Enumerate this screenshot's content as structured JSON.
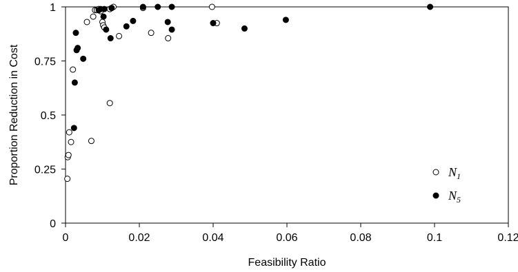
{
  "chart_data": {
    "type": "scatter",
    "title": "",
    "xlabel": "Feasibility Ratio",
    "ylabel": "Proportion Reduction in Cost",
    "xlim": [
      0,
      0.12
    ],
    "ylim": [
      0,
      1
    ],
    "x_ticks": [
      "0",
      "0.02",
      "0.04",
      "0.06",
      "0.08",
      "0.1",
      "0.12"
    ],
    "y_ticks": [
      "0",
      "0.25",
      "0.5",
      "0.75",
      "1"
    ],
    "grid": false,
    "legend_position": "bottom-right",
    "series": [
      {
        "name_main": "N",
        "name_sub": "1",
        "marker": "open-circle",
        "points": [
          [
            0.0005,
            0.205
          ],
          [
            0.0006,
            0.305
          ],
          [
            0.0008,
            0.315
          ],
          [
            0.001,
            0.42
          ],
          [
            0.0015,
            0.375
          ],
          [
            0.002,
            0.71
          ],
          [
            0.0058,
            0.93
          ],
          [
            0.007,
            0.38
          ],
          [
            0.0075,
            0.955
          ],
          [
            0.008,
            0.985
          ],
          [
            0.0085,
            0.985
          ],
          [
            0.009,
            0.99
          ],
          [
            0.0095,
            0.98
          ],
          [
            0.01,
            0.93
          ],
          [
            0.0102,
            0.915
          ],
          [
            0.0105,
            0.905
          ],
          [
            0.012,
            0.555
          ],
          [
            0.012,
            0.99
          ],
          [
            0.0125,
            0.995
          ],
          [
            0.013,
            1.0
          ],
          [
            0.0145,
            0.865
          ],
          [
            0.021,
            0.995
          ],
          [
            0.0232,
            0.88
          ],
          [
            0.0278,
            0.855
          ],
          [
            0.0397,
            1.0
          ],
          [
            0.041,
            0.925
          ]
        ]
      },
      {
        "name_main": "N",
        "name_sub": "5",
        "marker": "filled-circle",
        "points": [
          [
            0.0023,
            0.44
          ],
          [
            0.0025,
            0.65
          ],
          [
            0.0028,
            0.88
          ],
          [
            0.003,
            0.8
          ],
          [
            0.0033,
            0.81
          ],
          [
            0.0048,
            0.76
          ],
          [
            0.009,
            0.985
          ],
          [
            0.0095,
            0.99
          ],
          [
            0.0103,
            0.955
          ],
          [
            0.0105,
            0.99
          ],
          [
            0.011,
            0.895
          ],
          [
            0.0122,
            0.855
          ],
          [
            0.0125,
            0.995
          ],
          [
            0.0165,
            0.91
          ],
          [
            0.0183,
            0.935
          ],
          [
            0.021,
            1.0
          ],
          [
            0.025,
            1.0
          ],
          [
            0.0277,
            0.93
          ],
          [
            0.0288,
            1.0
          ],
          [
            0.0288,
            0.895
          ],
          [
            0.04,
            0.925
          ],
          [
            0.0485,
            0.9
          ],
          [
            0.0597,
            0.94
          ],
          [
            0.0988,
            1.0
          ]
        ]
      }
    ]
  }
}
